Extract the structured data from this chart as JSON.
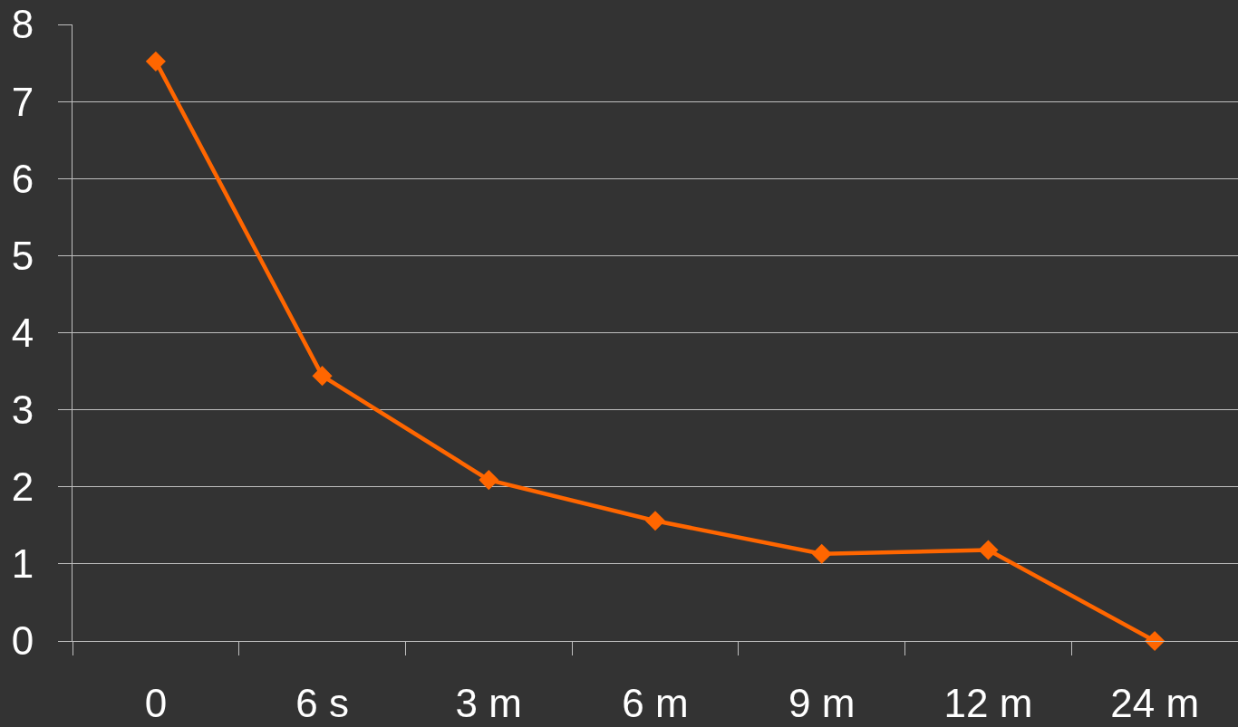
{
  "chart_data": {
    "type": "line",
    "categories": [
      "0",
      "6 s",
      "3 m",
      "6 m",
      "9 m",
      "12 m",
      "24 m"
    ],
    "series": [
      {
        "color": "#ff6600",
        "values": [
          7.52,
          3.44,
          2.09,
          1.56,
          1.13,
          1.18,
          0
        ]
      }
    ],
    "ylim": [
      0,
      8
    ],
    "yticks": [
      0,
      1,
      2,
      3,
      4,
      5,
      6,
      7,
      8
    ],
    "grid": "y",
    "marker": "diamond",
    "line_style": "solid"
  }
}
